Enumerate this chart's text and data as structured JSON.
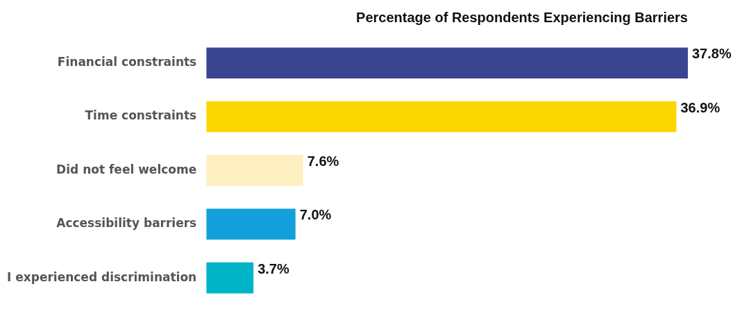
{
  "chart_data": {
    "type": "bar",
    "orientation": "horizontal",
    "title": "Percentage of Respondents Experiencing Barriers",
    "categories": [
      "Financial constraints",
      "Time constraints",
      "Did not feel welcome",
      "Accessibility barriers",
      "I experienced discrimination"
    ],
    "values": [
      37.8,
      36.9,
      7.6,
      7.0,
      3.7
    ],
    "colors": [
      "#3a4592",
      "#fcd600",
      "#fdefc0",
      "#12a0dc",
      "#00b4c8"
    ],
    "value_labels": [
      "37.8%",
      "36.9%",
      "7.6%",
      "7.0%",
      "3.7%"
    ],
    "legend": false
  }
}
